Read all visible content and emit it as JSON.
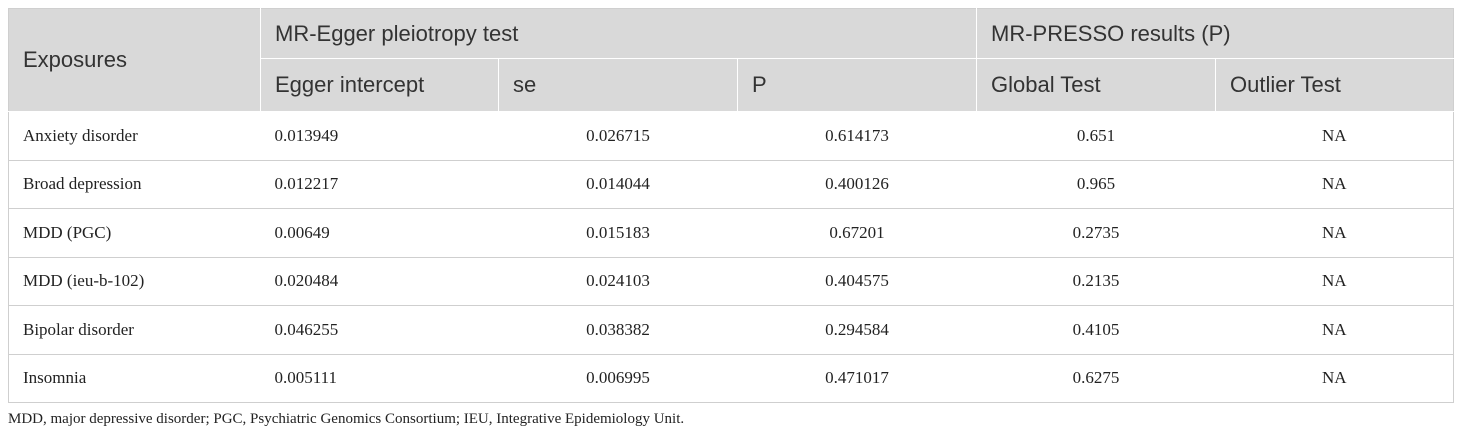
{
  "colors": {
    "header_bg": "#d9d9d9",
    "header_text": "#333333",
    "body_text": "#222222",
    "rule": "#cfcfcf"
  },
  "table": {
    "header": {
      "exposures": "Exposures",
      "groups": [
        "MR-Egger pleiotropy test",
        "MR-PRESSO results (P)"
      ],
      "columns": [
        "Egger intercept",
        "se",
        "P",
        "Global Test",
        "Outlier Test"
      ]
    },
    "rows": [
      {
        "exposure": "Anxiety disorder",
        "egger_intercept": "0.013949",
        "se": "0.026715",
        "p": "0.614173",
        "global_test": "0.651",
        "outlier_test": "NA"
      },
      {
        "exposure": "Broad depression",
        "egger_intercept": "0.012217",
        "se": "0.014044",
        "p": "0.400126",
        "global_test": "0.965",
        "outlier_test": "NA"
      },
      {
        "exposure": "MDD (PGC)",
        "egger_intercept": "0.00649",
        "se": "0.015183",
        "p": "0.67201",
        "global_test": "0.2735",
        "outlier_test": "NA"
      },
      {
        "exposure": "MDD (ieu-b-102)",
        "egger_intercept": "0.020484",
        "se": "0.024103",
        "p": "0.404575",
        "global_test": "0.2135",
        "outlier_test": "NA"
      },
      {
        "exposure": "Bipolar disorder",
        "egger_intercept": "0.046255",
        "se": "0.038382",
        "p": "0.294584",
        "global_test": "0.4105",
        "outlier_test": "NA"
      },
      {
        "exposure": "Insomnia",
        "egger_intercept": "0.005111",
        "se": "0.006995",
        "p": "0.471017",
        "global_test": "0.6275",
        "outlier_test": "NA"
      }
    ]
  },
  "footnote": "MDD, major depressive disorder; PGC, Psychiatric Genomics Consortium; IEU, Integrative Epidemiology Unit."
}
